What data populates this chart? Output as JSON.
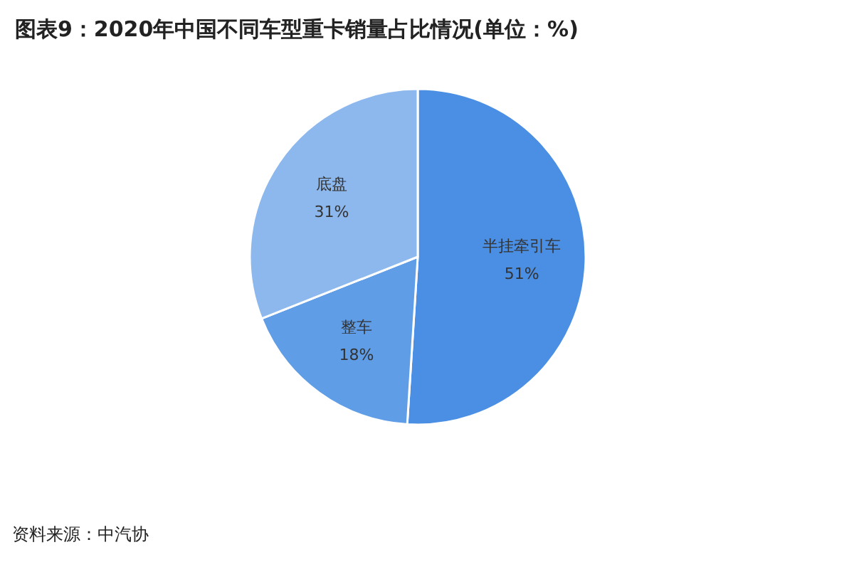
{
  "chart_data": {
    "type": "pie",
    "title": "图表9：2020年中国不同车型重卡销量占比情况(单位：%)",
    "categories": [
      "半挂牵引车",
      "整车",
      "底盘"
    ],
    "values": [
      51,
      18,
      31
    ],
    "value_labels": [
      "51%",
      "18%",
      "31%"
    ],
    "colors": [
      "#4a8fe3",
      "#5f9de6",
      "#8db8ee"
    ],
    "annotations": [
      "资料来源：中汽协"
    ]
  }
}
